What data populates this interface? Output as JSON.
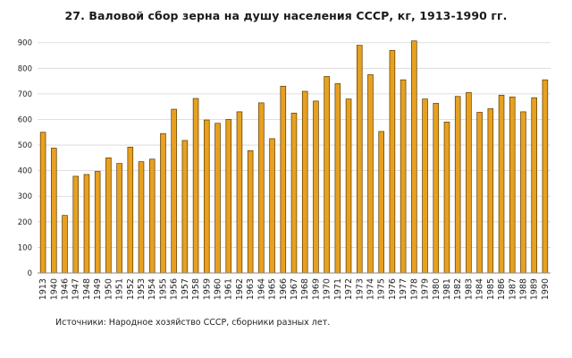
{
  "chart_data": {
    "type": "bar",
    "title": "27. Валовой сбор зерна на душу населения СССР, кг, 1913-1990 гг.",
    "xlabel": "",
    "ylabel": "",
    "ylim": [
      0,
      920
    ],
    "yticks": [
      0,
      100,
      200,
      300,
      400,
      500,
      600,
      700,
      800,
      900
    ],
    "grid": true,
    "legend": "none",
    "bar_color": "#e8a020",
    "bar_edge_color": "#5a3a00",
    "categories": [
      "1913",
      "1940",
      "1946",
      "1947",
      "1948",
      "1949",
      "1950",
      "1951",
      "1952",
      "1953",
      "1954",
      "1955",
      "1956",
      "1957",
      "1958",
      "1959",
      "1960",
      "1961",
      "1962",
      "1963",
      "1964",
      "1965",
      "1966",
      "1967",
      "1968",
      "1969",
      "1970",
      "1971",
      "1972",
      "1973",
      "1974",
      "1975",
      "1976",
      "1977",
      "1978",
      "1979",
      "1980",
      "1981",
      "1982",
      "1983",
      "1984",
      "1985",
      "1986",
      "1987",
      "1988",
      "1989",
      "1990"
    ],
    "values": [
      550,
      488,
      225,
      378,
      385,
      397,
      450,
      428,
      492,
      435,
      445,
      545,
      640,
      518,
      682,
      598,
      585,
      600,
      630,
      478,
      665,
      525,
      730,
      625,
      710,
      672,
      768,
      740,
      680,
      890,
      775,
      553,
      870,
      755,
      907,
      680,
      663,
      590,
      690,
      705,
      628,
      642,
      695,
      688,
      630,
      685,
      755
    ]
  },
  "source_text": "Источники: Народное хозяйство СССР, сборники разных лет."
}
